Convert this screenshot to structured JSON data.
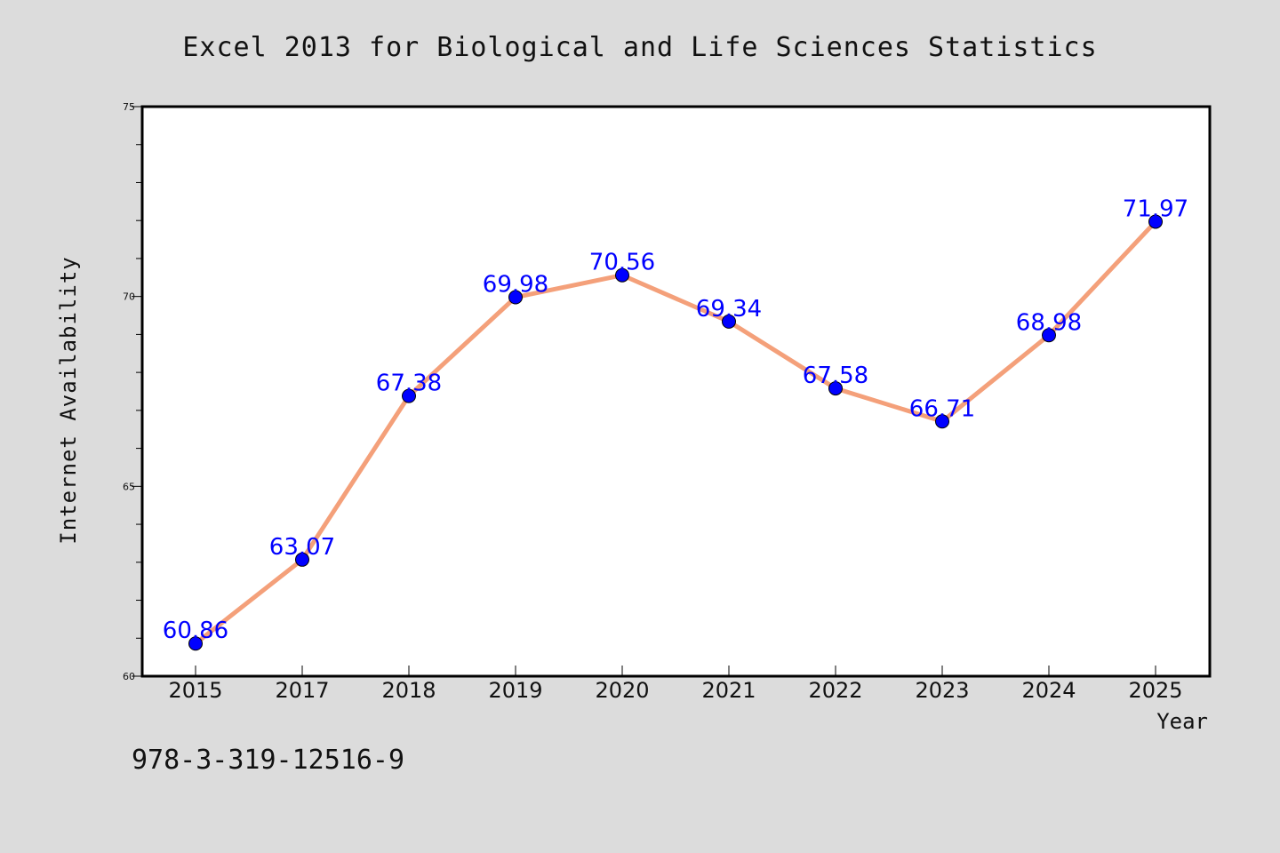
{
  "chart_data": {
    "type": "line",
    "title": "Excel 2013 for Biological and Life Sciences Statistics",
    "xlabel": "Year",
    "ylabel": "Internet Availability",
    "categories": [
      "2015",
      "2017",
      "2018",
      "2019",
      "2020",
      "2021",
      "2022",
      "2023",
      "2024",
      "2025"
    ],
    "series": [
      {
        "values": [
          60.86,
          63.07,
          67.38,
          69.98,
          70.56,
          69.34,
          67.58,
          66.71,
          68.98,
          71.97
        ],
        "data_labels": [
          "60.86",
          "63.07",
          "67.38",
          "69.98",
          "70.56",
          "69.34",
          "67.58",
          "66.71",
          "68.98",
          "71.97"
        ],
        "line_color": "#f4a07a",
        "marker_color": "#0000ff"
      }
    ],
    "ylim": [
      60,
      75
    ],
    "y_major_ticks": [
      "60",
      "65",
      "70",
      "75"
    ],
    "y_minor_tick_step": 1,
    "grid": false,
    "legend": "none",
    "background_color": "#dcdcdc",
    "plot_background_color": "#ffffff",
    "label_color": "#0000ff"
  },
  "annotation": "978-3-319-12516-9"
}
